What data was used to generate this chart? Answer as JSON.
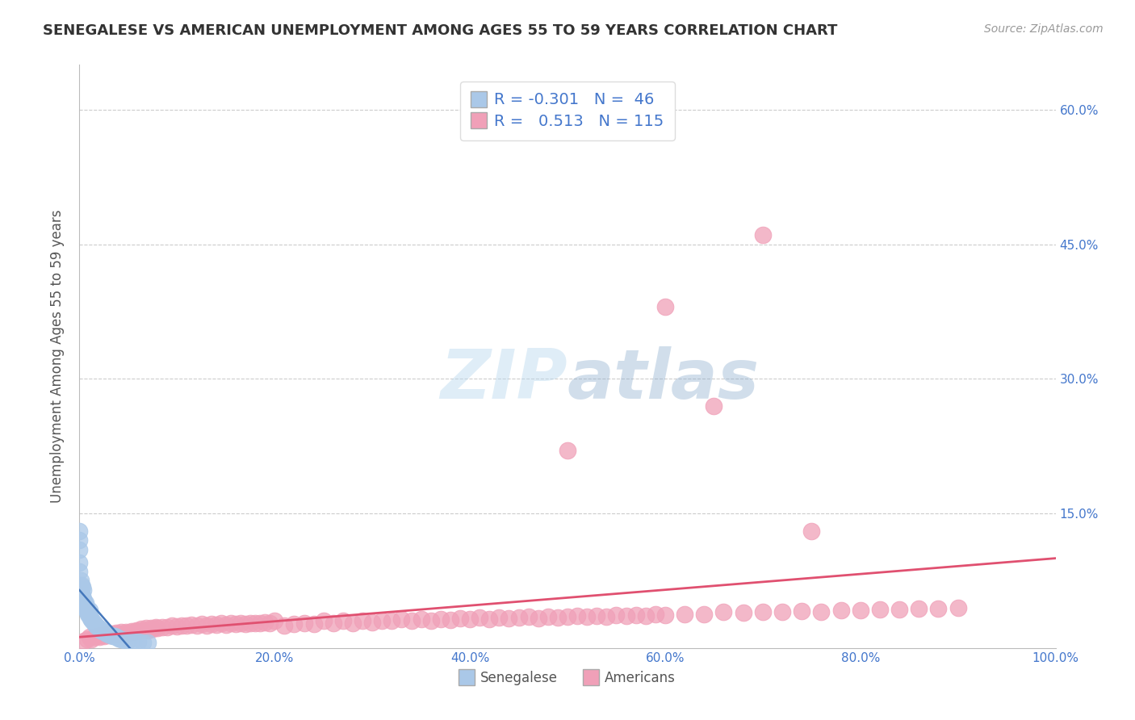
{
  "title": "SENEGALESE VS AMERICAN UNEMPLOYMENT AMONG AGES 55 TO 59 YEARS CORRELATION CHART",
  "source": "Source: ZipAtlas.com",
  "ylabel": "Unemployment Among Ages 55 to 59 years",
  "legend_label_1": "Senegalese",
  "legend_label_2": "Americans",
  "R1": -0.301,
  "N1": 46,
  "R2": 0.513,
  "N2": 115,
  "xlim": [
    0.0,
    1.0
  ],
  "ylim": [
    0.0,
    0.65
  ],
  "xticks": [
    0.0,
    0.2,
    0.4,
    0.6,
    0.8,
    1.0
  ],
  "xtick_labels": [
    "0.0%",
    "20.0%",
    "40.0%",
    "60.0%",
    "80.0%",
    "100.0%"
  ],
  "yticks": [
    0.0,
    0.15,
    0.3,
    0.45,
    0.6
  ],
  "ytick_labels_right": [
    "",
    "15.0%",
    "30.0%",
    "45.0%",
    "60.0%"
  ],
  "color_blue": "#aac8e8",
  "color_pink": "#f0a0b8",
  "line_blue_color": "#4477bb",
  "line_pink_color": "#e05070",
  "tick_label_color": "#4477cc",
  "axis_label_color": "#555555",
  "title_color": "#333333",
  "grid_color": "#cccccc",
  "background_color": "#ffffff",
  "senegalese_x": [
    0.0,
    0.0,
    0.0,
    0.0,
    0.0,
    0.001,
    0.001,
    0.002,
    0.002,
    0.003,
    0.003,
    0.004,
    0.004,
    0.005,
    0.005,
    0.006,
    0.006,
    0.007,
    0.008,
    0.009,
    0.01,
    0.01,
    0.011,
    0.012,
    0.013,
    0.015,
    0.016,
    0.018,
    0.02,
    0.022,
    0.024,
    0.026,
    0.028,
    0.03,
    0.032,
    0.034,
    0.036,
    0.038,
    0.04,
    0.043,
    0.046,
    0.05,
    0.055,
    0.06,
    0.065,
    0.07
  ],
  "senegalese_y": [
    0.095,
    0.11,
    0.12,
    0.13,
    0.085,
    0.075,
    0.065,
    0.07,
    0.06,
    0.068,
    0.058,
    0.065,
    0.055,
    0.052,
    0.048,
    0.05,
    0.044,
    0.046,
    0.04,
    0.038,
    0.042,
    0.036,
    0.033,
    0.032,
    0.03,
    0.028,
    0.026,
    0.024,
    0.022,
    0.02,
    0.019,
    0.018,
    0.016,
    0.015,
    0.014,
    0.013,
    0.013,
    0.012,
    0.011,
    0.01,
    0.009,
    0.009,
    0.008,
    0.007,
    0.006,
    0.006
  ],
  "americans_x": [
    0.005,
    0.008,
    0.01,
    0.012,
    0.015,
    0.018,
    0.02,
    0.022,
    0.025,
    0.028,
    0.03,
    0.033,
    0.035,
    0.038,
    0.04,
    0.043,
    0.045,
    0.048,
    0.05,
    0.053,
    0.055,
    0.058,
    0.06,
    0.063,
    0.065,
    0.068,
    0.07,
    0.073,
    0.075,
    0.078,
    0.08,
    0.085,
    0.09,
    0.095,
    0.1,
    0.105,
    0.11,
    0.115,
    0.12,
    0.125,
    0.13,
    0.135,
    0.14,
    0.145,
    0.15,
    0.155,
    0.16,
    0.165,
    0.17,
    0.175,
    0.18,
    0.185,
    0.19,
    0.195,
    0.2,
    0.21,
    0.22,
    0.23,
    0.24,
    0.25,
    0.26,
    0.27,
    0.28,
    0.29,
    0.3,
    0.31,
    0.32,
    0.33,
    0.34,
    0.35,
    0.36,
    0.37,
    0.38,
    0.39,
    0.4,
    0.41,
    0.42,
    0.43,
    0.44,
    0.45,
    0.46,
    0.47,
    0.48,
    0.49,
    0.5,
    0.51,
    0.52,
    0.53,
    0.54,
    0.55,
    0.56,
    0.57,
    0.58,
    0.59,
    0.6,
    0.62,
    0.64,
    0.66,
    0.68,
    0.7,
    0.72,
    0.74,
    0.76,
    0.78,
    0.8,
    0.82,
    0.84,
    0.86,
    0.88,
    0.9,
    0.5,
    0.6,
    0.65,
    0.7,
    0.75
  ],
  "americans_y": [
    0.008,
    0.01,
    0.012,
    0.01,
    0.012,
    0.013,
    0.012,
    0.014,
    0.013,
    0.015,
    0.014,
    0.016,
    0.015,
    0.017,
    0.016,
    0.018,
    0.016,
    0.018,
    0.017,
    0.019,
    0.018,
    0.02,
    0.019,
    0.021,
    0.02,
    0.022,
    0.02,
    0.022,
    0.021,
    0.023,
    0.022,
    0.023,
    0.023,
    0.025,
    0.024,
    0.025,
    0.025,
    0.026,
    0.025,
    0.027,
    0.025,
    0.027,
    0.026,
    0.028,
    0.026,
    0.028,
    0.027,
    0.028,
    0.027,
    0.028,
    0.028,
    0.028,
    0.029,
    0.028,
    0.03,
    0.025,
    0.027,
    0.028,
    0.027,
    0.03,
    0.028,
    0.03,
    0.028,
    0.03,
    0.029,
    0.03,
    0.03,
    0.032,
    0.03,
    0.032,
    0.03,
    0.032,
    0.031,
    0.033,
    0.032,
    0.034,
    0.032,
    0.034,
    0.033,
    0.034,
    0.035,
    0.033,
    0.035,
    0.034,
    0.035,
    0.036,
    0.035,
    0.036,
    0.035,
    0.037,
    0.036,
    0.037,
    0.036,
    0.038,
    0.037,
    0.038,
    0.038,
    0.04,
    0.039,
    0.04,
    0.04,
    0.041,
    0.04,
    0.042,
    0.042,
    0.043,
    0.043,
    0.044,
    0.044,
    0.045,
    0.22,
    0.38,
    0.27,
    0.46,
    0.13
  ]
}
